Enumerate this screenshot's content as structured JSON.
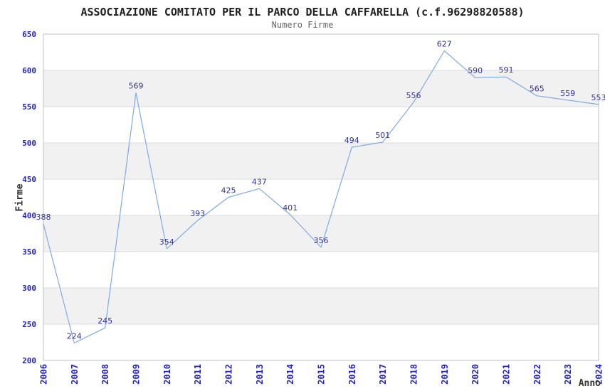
{
  "chart_data": {
    "type": "line",
    "title": "ASSOCIAZIONE COMITATO PER IL PARCO DELLA CAFFARELLA (c.f.96298820588)",
    "subtitle": "Numero Firme",
    "xlabel": "Anno",
    "ylabel": "Firme",
    "categories": [
      "2006",
      "2007",
      "2008",
      "2009",
      "2010",
      "2011",
      "2012",
      "2013",
      "2014",
      "2015",
      "2016",
      "2017",
      "2018",
      "2019",
      "2020",
      "2021",
      "2022",
      "2023",
      "2024"
    ],
    "values": [
      388,
      224,
      245,
      569,
      354,
      393,
      425,
      437,
      401,
      356,
      494,
      501,
      556,
      627,
      590,
      591,
      565,
      559,
      553
    ],
    "ylim": [
      200,
      650
    ],
    "ytick_step": 50,
    "grid": "horizontal gridlines with alternating gray bands",
    "legend": "none",
    "data_labels_shown": true,
    "colors": {
      "line": "#7aace4",
      "tick_labels": "#2222cc",
      "data_labels": "#333399",
      "band": "#f1f1f1",
      "gridline": "#dcdcdc",
      "border": "#c0c0c0",
      "title": "#1f1f1f",
      "subtitle": "#666666",
      "axis_titles": "#333333",
      "background": "#ffffff"
    }
  }
}
